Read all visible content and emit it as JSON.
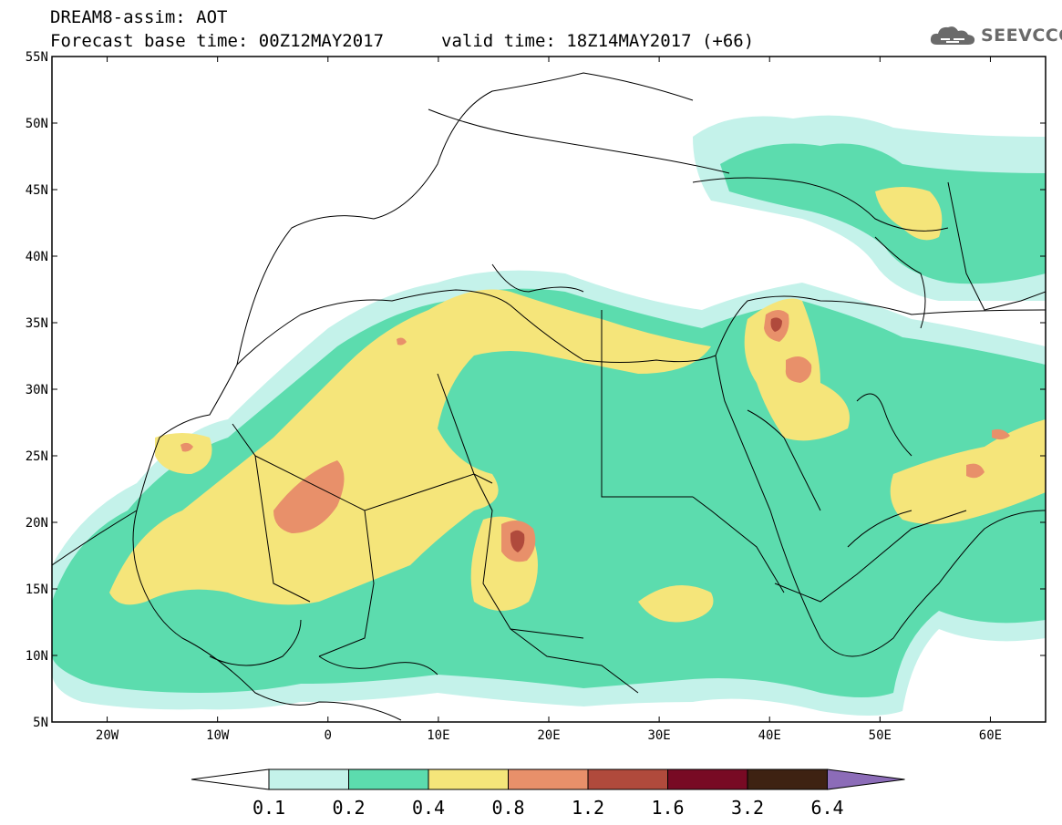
{
  "title": {
    "model": "DREAM8-assim: AOT",
    "base": "Forecast base time: 00Z12MAY2017",
    "valid": "valid time: 18Z14MAY2017 (+66)"
  },
  "logo": {
    "text": "SEEVCCC",
    "icon": "cloud-icon"
  },
  "map": {
    "lon_range": [
      -25,
      65
    ],
    "lat_range": [
      5,
      55
    ],
    "lat_ticks": [
      {
        "value": 55,
        "label": "55N"
      },
      {
        "value": 50,
        "label": "50N"
      },
      {
        "value": 45,
        "label": "45N"
      },
      {
        "value": 40,
        "label": "40N"
      },
      {
        "value": 35,
        "label": "35N"
      },
      {
        "value": 30,
        "label": "30N"
      },
      {
        "value": 25,
        "label": "25N"
      },
      {
        "value": 20,
        "label": "20N"
      },
      {
        "value": 15,
        "label": "15N"
      },
      {
        "value": 10,
        "label": "10N"
      },
      {
        "value": 5,
        "label": "5N"
      }
    ],
    "lon_ticks": [
      {
        "value": -20,
        "label": "20W"
      },
      {
        "value": -10,
        "label": "10W"
      },
      {
        "value": 0,
        "label": "0"
      },
      {
        "value": 10,
        "label": "10E"
      },
      {
        "value": 20,
        "label": "20E"
      },
      {
        "value": 30,
        "label": "30E"
      },
      {
        "value": 40,
        "label": "40E"
      },
      {
        "value": 50,
        "label": "50E"
      },
      {
        "value": 60,
        "label": "60E"
      }
    ]
  },
  "colorbar": {
    "levels": [
      "0.1",
      "0.2",
      "0.4",
      "0.8",
      "1.2",
      "1.6",
      "3.2",
      "6.4"
    ],
    "colors": [
      "#ffffff",
      "#c4f2ea",
      "#5cdcae",
      "#f5e57a",
      "#e8906a",
      "#b04a3c",
      "#780a24",
      "#3e2212",
      "#8c6cb8"
    ]
  }
}
